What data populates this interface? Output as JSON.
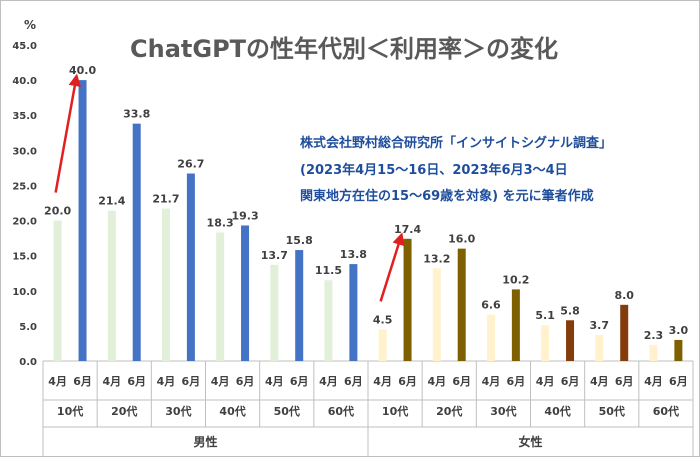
{
  "chart_data": {
    "type": "bar",
    "title": "ChatGPTの性年代別＜利用率＞の変化",
    "y_unit": "%",
    "ylim": [
      0,
      45
    ],
    "y_ticks": [
      "0.0",
      "5.0",
      "10.0",
      "15.0",
      "20.0",
      "25.0",
      "30.0",
      "35.0",
      "40.0",
      "45.0"
    ],
    "source_lines": [
      "株式会社野村総合研究所「インサイトシグナル調査」",
      "(2023年4月15～16日、2023年6月3～4日",
      "関東地方在住の15～69歳を対象) を元に筆者作成"
    ],
    "months": [
      "4月",
      "6月"
    ],
    "age_groups": [
      "10代",
      "20代",
      "30代",
      "40代",
      "50代",
      "60代"
    ],
    "genders": [
      {
        "label": "男性",
        "april": [
          20.0,
          21.4,
          21.7,
          18.3,
          13.7,
          11.5
        ],
        "june": [
          40.0,
          33.8,
          26.7,
          19.3,
          15.8,
          13.8
        ],
        "april_labels": [
          "20.0",
          "21.4",
          "21.7",
          "18.3",
          "13.7",
          "11.5"
        ],
        "june_labels": [
          "40.0",
          "33.8",
          "26.7",
          "19.3",
          "15.8",
          "13.8"
        ],
        "april_color": "#e2efd9",
        "june_colors": [
          "#4472c4",
          "#4472c4",
          "#4472c4",
          "#4472c4",
          "#4472c4",
          "#4472c4"
        ]
      },
      {
        "label": "女性",
        "april": [
          4.5,
          13.2,
          6.6,
          5.1,
          3.7,
          2.3
        ],
        "june": [
          17.4,
          16.0,
          10.2,
          5.8,
          8.0,
          3.0
        ],
        "april_labels": [
          "4.5",
          "13.2",
          "6.6",
          "5.1",
          "3.7",
          "2.3"
        ],
        "june_labels": [
          "17.4",
          "16.0",
          "10.2",
          "5.8",
          "8.0",
          "3.0"
        ],
        "april_color": "#fff2cc",
        "june_colors": [
          "#7f6000",
          "#7f6000",
          "#7f6000",
          "#843c0c",
          "#843c0c",
          "#7f6000"
        ]
      }
    ],
    "annotations": [
      {
        "type": "arrow",
        "color": "#e02020",
        "from_bar": "男性-10代-4月",
        "to_bar": "男性-10代-6月"
      },
      {
        "type": "arrow",
        "color": "#e02020",
        "from_bar": "女性-10代-4月",
        "to_bar": "女性-10代-6月"
      }
    ],
    "grid": false,
    "legend": "none"
  }
}
